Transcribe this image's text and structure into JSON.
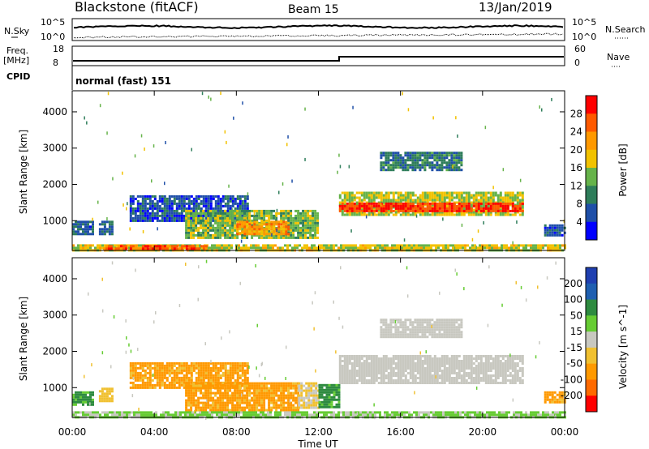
{
  "header": {
    "station": "Blackstone (fitACF)",
    "beam": "Beam 15",
    "date": "13/Jan/2019"
  },
  "top_panels": {
    "nsky_label": "N.Sky",
    "nsky_top": "10^5",
    "nsky_bottom": "10^0",
    "nsearch_label": "N.Search",
    "nsearch_top": "10^5",
    "nsearch_bottom": "10^0",
    "freq_label_1": "Freq.",
    "freq_label_2": "[MHz]",
    "freq_top": "18",
    "freq_bottom": "8",
    "nave_label": "Nave",
    "nave_top": "60",
    "nave_bottom": "0",
    "cpid_label": "CPID",
    "cpid_value": "normal (fast) 151"
  },
  "colors": {
    "power": [
      "#0000ff",
      "#1f4fa8",
      "#2e7d5a",
      "#66b34a",
      "#f2c200",
      "#ff9900",
      "#ff5a00",
      "#ff0000"
    ],
    "velocity": [
      "#ff0000",
      "#ff6a00",
      "#ff9900",
      "#f0c030",
      "#c8c8c0",
      "#66cc33",
      "#2e8b40",
      "#1f5fb0",
      "#1f3fb0"
    ],
    "ground": "#c8c8c0"
  },
  "chart_data": [
    {
      "type": "heatmap",
      "name": "power",
      "ylabel": "Slant Range [km]",
      "xlabel": "Time UT",
      "x_ticks": [
        "00:00",
        "04:00",
        "08:00",
        "12:00",
        "16:00",
        "20:00",
        "00:00"
      ],
      "x_range_hours": [
        0,
        24
      ],
      "y_ticks": [
        1000,
        2000,
        3000,
        4000
      ],
      "ylim": [
        180,
        4580
      ],
      "colorbar_label": "Power [dB]",
      "colorbar_ticks": [
        4,
        8,
        12,
        16,
        20,
        24,
        28
      ],
      "colorbar_range": [
        0,
        32
      ],
      "regions": [
        {
          "t": [
            0.0,
            1.0
          ],
          "r": [
            600,
            1000
          ],
          "v": 7
        },
        {
          "t": [
            1.3,
            2.0
          ],
          "r": [
            600,
            1000
          ],
          "v": 8
        },
        {
          "t": [
            2.8,
            8.5
          ],
          "r": [
            1000,
            1700
          ],
          "v": 6
        },
        {
          "t": [
            5.5,
            12.0
          ],
          "r": [
            550,
            1300
          ],
          "v": 14
        },
        {
          "t": [
            8.0,
            10.5
          ],
          "r": [
            650,
            1000
          ],
          "v": 22
        },
        {
          "t": [
            13.0,
            22.0
          ],
          "r": [
            1150,
            1800
          ],
          "v": 16
        },
        {
          "t": [
            13.0,
            22.0
          ],
          "r": [
            1250,
            1500
          ],
          "v": 28
        },
        {
          "t": [
            15.0,
            19.0
          ],
          "r": [
            2400,
            2900
          ],
          "v": 9
        },
        {
          "t": [
            0.0,
            24.0
          ],
          "r": [
            200,
            350
          ],
          "v": 17
        },
        {
          "t": [
            1.5,
            6.5
          ],
          "r": [
            200,
            330
          ],
          "v": 26
        },
        {
          "t": [
            23.0,
            24.0
          ],
          "r": [
            600,
            900
          ],
          "v": 6
        }
      ]
    },
    {
      "type": "heatmap",
      "name": "velocity",
      "ylabel": "Slant Range [km]",
      "xlabel": "Time UT",
      "x_ticks": [
        "00:00",
        "04:00",
        "08:00",
        "12:00",
        "16:00",
        "20:00",
        "00:00"
      ],
      "x_range_hours": [
        0,
        24
      ],
      "y_ticks": [
        1000,
        2000,
        3000,
        4000
      ],
      "ylim": [
        180,
        4580
      ],
      "colorbar_label": "Velocity [m s^-1]",
      "colorbar_ticks": [
        200,
        100,
        50,
        15,
        -15,
        -50,
        -100,
        -200
      ],
      "regions": [
        {
          "t": [
            0.0,
            1.0
          ],
          "r": [
            500,
            900
          ],
          "v": 60
        },
        {
          "t": [
            1.3,
            2.0
          ],
          "r": [
            600,
            1000
          ],
          "v": -30
        },
        {
          "t": [
            2.8,
            8.5
          ],
          "r": [
            1000,
            1700
          ],
          "v": -60
        },
        {
          "t": [
            5.5,
            11.0
          ],
          "r": [
            400,
            1150
          ],
          "v": -60
        },
        {
          "t": [
            11.0,
            12.0
          ],
          "r": [
            450,
            1150
          ],
          "v": -15
        },
        {
          "t": [
            12.0,
            13.0
          ],
          "r": [
            450,
            1100
          ],
          "v": 60
        },
        {
          "t": [
            13.0,
            22.0
          ],
          "r": [
            1100,
            1900
          ],
          "v": 0
        },
        {
          "t": [
            15.0,
            19.0
          ],
          "r": [
            2400,
            2900
          ],
          "v": 0
        },
        {
          "t": [
            0.0,
            24.0
          ],
          "r": [
            200,
            350
          ],
          "v": 20
        },
        {
          "t": [
            23.0,
            24.0
          ],
          "r": [
            600,
            900
          ],
          "v": -60
        }
      ]
    }
  ]
}
